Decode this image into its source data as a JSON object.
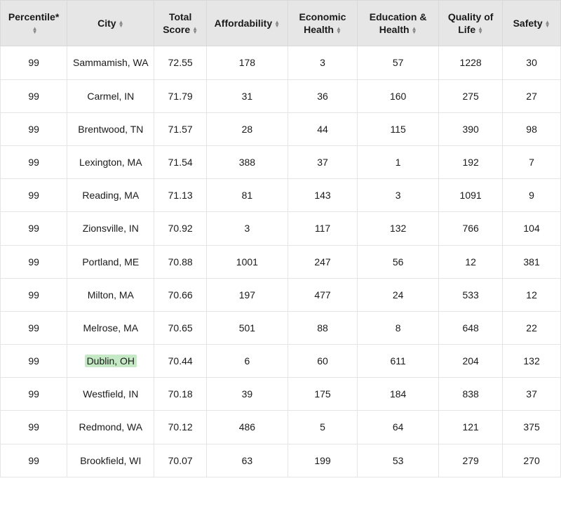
{
  "table": {
    "columns": [
      {
        "label": "Percentile*",
        "sortable": true,
        "colClass": "c-percentile"
      },
      {
        "label": "City",
        "sortable": true,
        "colClass": "c-city"
      },
      {
        "label": "Total Score",
        "sortable": true,
        "colClass": "c-score"
      },
      {
        "label": "Affordability",
        "sortable": true,
        "colClass": "c-afford"
      },
      {
        "label": "Economic Health",
        "sortable": true,
        "colClass": "c-econ"
      },
      {
        "label": "Education & Health",
        "sortable": true,
        "colClass": "c-edu"
      },
      {
        "label": "Quality of Life",
        "sortable": true,
        "colClass": "c-qol"
      },
      {
        "label": "Safety",
        "sortable": true,
        "colClass": "c-safety"
      }
    ],
    "highlight_city": "Dublin, OH",
    "highlight_color": "#c5e8c5",
    "header_bg": "#e6e6e6",
    "border_color": "#e5e5e5",
    "font_size": 14,
    "rows": [
      {
        "percentile": 99,
        "city": "Sammamish, WA",
        "total_score": "72.55",
        "affordability": 178,
        "economic_health": 3,
        "education_health": 57,
        "quality_of_life": 1228,
        "safety": 30
      },
      {
        "percentile": 99,
        "city": "Carmel, IN",
        "total_score": "71.79",
        "affordability": 31,
        "economic_health": 36,
        "education_health": 160,
        "quality_of_life": 275,
        "safety": 27
      },
      {
        "percentile": 99,
        "city": "Brentwood, TN",
        "total_score": "71.57",
        "affordability": 28,
        "economic_health": 44,
        "education_health": 115,
        "quality_of_life": 390,
        "safety": 98
      },
      {
        "percentile": 99,
        "city": "Lexington, MA",
        "total_score": "71.54",
        "affordability": 388,
        "economic_health": 37,
        "education_health": 1,
        "quality_of_life": 192,
        "safety": 7
      },
      {
        "percentile": 99,
        "city": "Reading, MA",
        "total_score": "71.13",
        "affordability": 81,
        "economic_health": 143,
        "education_health": 3,
        "quality_of_life": 1091,
        "safety": 9
      },
      {
        "percentile": 99,
        "city": "Zionsville, IN",
        "total_score": "70.92",
        "affordability": 3,
        "economic_health": 117,
        "education_health": 132,
        "quality_of_life": 766,
        "safety": 104
      },
      {
        "percentile": 99,
        "city": "Portland, ME",
        "total_score": "70.88",
        "affordability": 1001,
        "economic_health": 247,
        "education_health": 56,
        "quality_of_life": 12,
        "safety": 381
      },
      {
        "percentile": 99,
        "city": "Milton, MA",
        "total_score": "70.66",
        "affordability": 197,
        "economic_health": 477,
        "education_health": 24,
        "quality_of_life": 533,
        "safety": 12
      },
      {
        "percentile": 99,
        "city": "Melrose, MA",
        "total_score": "70.65",
        "affordability": 501,
        "economic_health": 88,
        "education_health": 8,
        "quality_of_life": 648,
        "safety": 22
      },
      {
        "percentile": 99,
        "city": "Dublin, OH",
        "total_score": "70.44",
        "affordability": 6,
        "economic_health": 60,
        "education_health": 611,
        "quality_of_life": 204,
        "safety": 132
      },
      {
        "percentile": 99,
        "city": "Westfield, IN",
        "total_score": "70.18",
        "affordability": 39,
        "economic_health": 175,
        "education_health": 184,
        "quality_of_life": 838,
        "safety": 37
      },
      {
        "percentile": 99,
        "city": "Redmond, WA",
        "total_score": "70.12",
        "affordability": 486,
        "economic_health": 5,
        "education_health": 64,
        "quality_of_life": 121,
        "safety": 375
      },
      {
        "percentile": 99,
        "city": "Brookfield, WI",
        "total_score": "70.07",
        "affordability": 63,
        "economic_health": 199,
        "education_health": 53,
        "quality_of_life": 279,
        "safety": 270
      }
    ]
  }
}
